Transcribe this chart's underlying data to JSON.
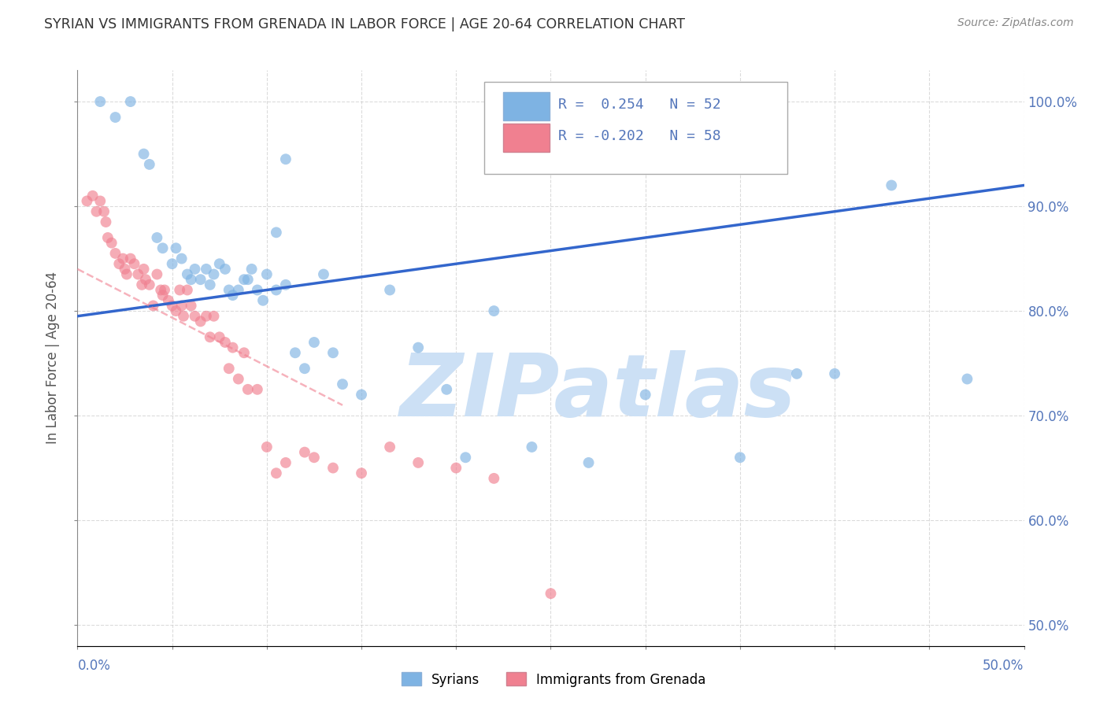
{
  "title": "SYRIAN VS IMMIGRANTS FROM GRENADA IN LABOR FORCE | AGE 20-64 CORRELATION CHART",
  "source": "Source: ZipAtlas.com",
  "ylabel": "In Labor Force | Age 20-64",
  "ytick_values": [
    50,
    60,
    70,
    80,
    90,
    100
  ],
  "xlim": [
    0,
    50
  ],
  "ylim": [
    48,
    103
  ],
  "syrians_color": "#7eb3e3",
  "grenada_color": "#f08090",
  "trendline_blue_color": "#3366cc",
  "trendline_pink_color": "#f08090",
  "watermark_color": "#cce0f5",
  "watermark_text": "ZIPatlas",
  "grid_color": "#cccccc",
  "title_color": "#333333",
  "axis_label_color": "#5577bb",
  "blue_r_value": "0.254",
  "blue_n_value": "52",
  "pink_r_value": "-0.202",
  "pink_n_value": "58",
  "blue_trend_x": [
    0,
    50
  ],
  "blue_trend_y": [
    79.5,
    92.0
  ],
  "pink_trend_x": [
    0,
    14
  ],
  "pink_trend_y": [
    84.0,
    71.0
  ],
  "syrians_x": [
    1.2,
    2.0,
    2.8,
    3.5,
    3.8,
    4.2,
    4.5,
    5.0,
    5.2,
    5.5,
    5.8,
    6.0,
    6.2,
    6.5,
    6.8,
    7.0,
    7.2,
    7.5,
    7.8,
    8.0,
    8.2,
    8.5,
    8.8,
    9.0,
    9.2,
    9.5,
    9.8,
    10.0,
    10.5,
    11.0,
    11.5,
    12.0,
    12.5,
    13.0,
    13.5,
    14.0,
    15.0,
    16.5,
    18.0,
    19.5,
    20.5,
    22.0,
    24.0,
    27.0,
    30.0,
    35.0,
    38.0,
    10.5,
    11.0,
    40.0,
    43.0,
    47.0
  ],
  "syrians_y": [
    100.0,
    98.5,
    100.0,
    95.0,
    94.0,
    87.0,
    86.0,
    84.5,
    86.0,
    85.0,
    83.5,
    83.0,
    84.0,
    83.0,
    84.0,
    82.5,
    83.5,
    84.5,
    84.0,
    82.0,
    81.5,
    82.0,
    83.0,
    83.0,
    84.0,
    82.0,
    81.0,
    83.5,
    82.0,
    82.5,
    76.0,
    74.5,
    77.0,
    83.5,
    76.0,
    73.0,
    72.0,
    82.0,
    76.5,
    72.5,
    66.0,
    80.0,
    67.0,
    65.5,
    72.0,
    66.0,
    74.0,
    87.5,
    94.5,
    74.0,
    92.0,
    73.5
  ],
  "grenada_x": [
    0.5,
    0.8,
    1.0,
    1.2,
    1.4,
    1.5,
    1.6,
    1.8,
    2.0,
    2.2,
    2.4,
    2.5,
    2.6,
    2.8,
    3.0,
    3.2,
    3.4,
    3.5,
    3.6,
    3.8,
    4.0,
    4.2,
    4.4,
    4.5,
    4.6,
    4.8,
    5.0,
    5.2,
    5.4,
    5.5,
    5.6,
    5.8,
    6.0,
    6.2,
    6.5,
    6.8,
    7.0,
    7.2,
    7.5,
    7.8,
    8.0,
    8.2,
    8.5,
    8.8,
    9.0,
    9.5,
    10.0,
    10.5,
    11.0,
    12.0,
    12.5,
    13.5,
    15.0,
    16.5,
    18.0,
    20.0,
    22.0,
    25.0
  ],
  "grenada_y": [
    90.5,
    91.0,
    89.5,
    90.5,
    89.5,
    88.5,
    87.0,
    86.5,
    85.5,
    84.5,
    85.0,
    84.0,
    83.5,
    85.0,
    84.5,
    83.5,
    82.5,
    84.0,
    83.0,
    82.5,
    80.5,
    83.5,
    82.0,
    81.5,
    82.0,
    81.0,
    80.5,
    80.0,
    82.0,
    80.5,
    79.5,
    82.0,
    80.5,
    79.5,
    79.0,
    79.5,
    77.5,
    79.5,
    77.5,
    77.0,
    74.5,
    76.5,
    73.5,
    76.0,
    72.5,
    72.5,
    67.0,
    64.5,
    65.5,
    66.5,
    66.0,
    65.0,
    64.5,
    67.0,
    65.5,
    65.0,
    64.0,
    53.0
  ]
}
